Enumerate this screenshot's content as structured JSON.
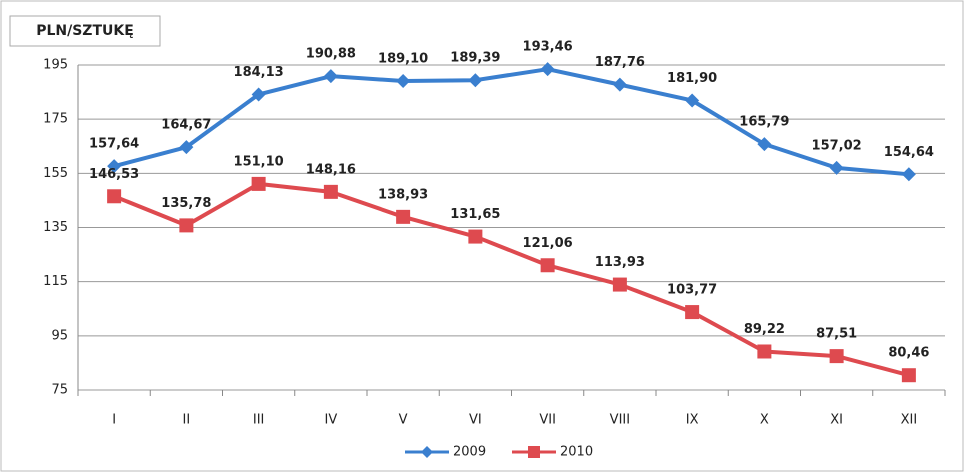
{
  "chart_data": {
    "type": "line",
    "ylabel": "PLN/SZTUKĘ",
    "categories": [
      "I",
      "II",
      "III",
      "IV",
      "V",
      "VI",
      "VII",
      "VIII",
      "IX",
      "X",
      "XI",
      "XII"
    ],
    "series": [
      {
        "name": "2009",
        "color": "#3a7fcf",
        "marker": "diamond",
        "values": [
          157.64,
          164.67,
          184.13,
          190.88,
          189.1,
          189.39,
          193.46,
          187.76,
          181.9,
          165.79,
          157.02,
          154.64
        ],
        "value_labels": [
          "157,64",
          "164,67",
          "184,13",
          "190,88",
          "189,10",
          "189,39",
          "193,46",
          "187,76",
          "181,90",
          "165,79",
          "157,02",
          "154,64"
        ]
      },
      {
        "name": "2010",
        "color": "#de4a4f",
        "marker": "square",
        "values": [
          146.53,
          135.78,
          151.1,
          148.16,
          138.93,
          131.65,
          121.06,
          113.93,
          103.77,
          89.22,
          87.51,
          80.46
        ],
        "value_labels": [
          "146,53",
          "135,78",
          "151,10",
          "148,16",
          "138,93",
          "131,65",
          "121,06",
          "113,93",
          "103,77",
          "89,22",
          "87,51",
          "80,46"
        ]
      }
    ],
    "ylim": [
      75,
      195
    ],
    "yticks": [
      75,
      95,
      115,
      135,
      155,
      175,
      195
    ],
    "grid": true,
    "legend": "bottom"
  }
}
